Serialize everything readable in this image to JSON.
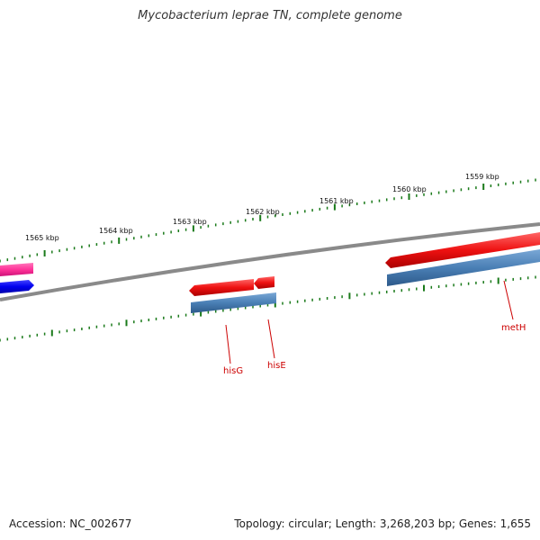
{
  "title": "Mycobacterium leprae TN, complete genome",
  "footer": {
    "accession": "Accession: NC_002677",
    "summary": "Topology: circular; Length: 3,268,203 bp; Genes: 1,655"
  },
  "colors": {
    "backbone": "#808080",
    "ticks": "#1a7a1a",
    "cds_forward": "#ee1111",
    "cds_reverse": "#4a7fb5",
    "feature_pink": "#ff3399",
    "feature_blue": "#0000ee",
    "label_red": "#cc0000"
  },
  "scale_labels": [
    "1565 kbp",
    "1564 kbp",
    "1563 kbp",
    "1562 kbp",
    "1561 kbp",
    "1560 kbp",
    "1559 kbp"
  ],
  "gene_labels": [
    "hisG",
    "hisE",
    "metH"
  ]
}
